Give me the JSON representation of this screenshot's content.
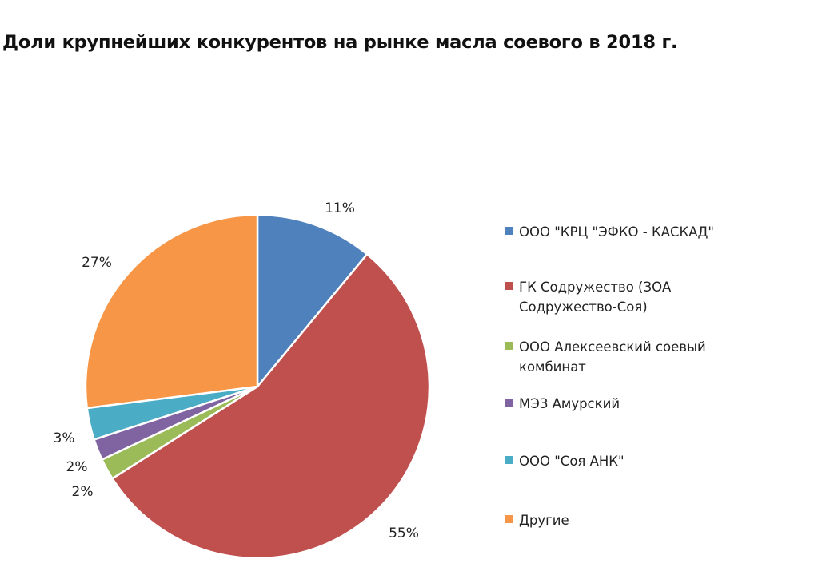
{
  "chart_data": {
    "type": "pie",
    "title": "Доли крупнейших конкурентов на рынке масла соевого в 2018 г.",
    "legend_position": "right",
    "categories": [
      "ООО \"КРЦ \"ЭФКО - КАСКАД\"",
      "ГК Содружество (ЗОА Содружество-Соя)",
      "ООО Алексеевский соевый комбинат",
      "МЭЗ Амурский",
      "ООО \"Соя АНК\"",
      "Другие"
    ],
    "values": [
      11,
      55,
      2,
      2,
      3,
      27
    ],
    "labels": [
      "11%",
      "55%",
      "2%",
      "2%",
      "3%",
      "27%"
    ],
    "colors": [
      "#4f81bd",
      "#c0504d",
      "#9bbb59",
      "#8064a2",
      "#4bacc6",
      "#f79646"
    ]
  }
}
